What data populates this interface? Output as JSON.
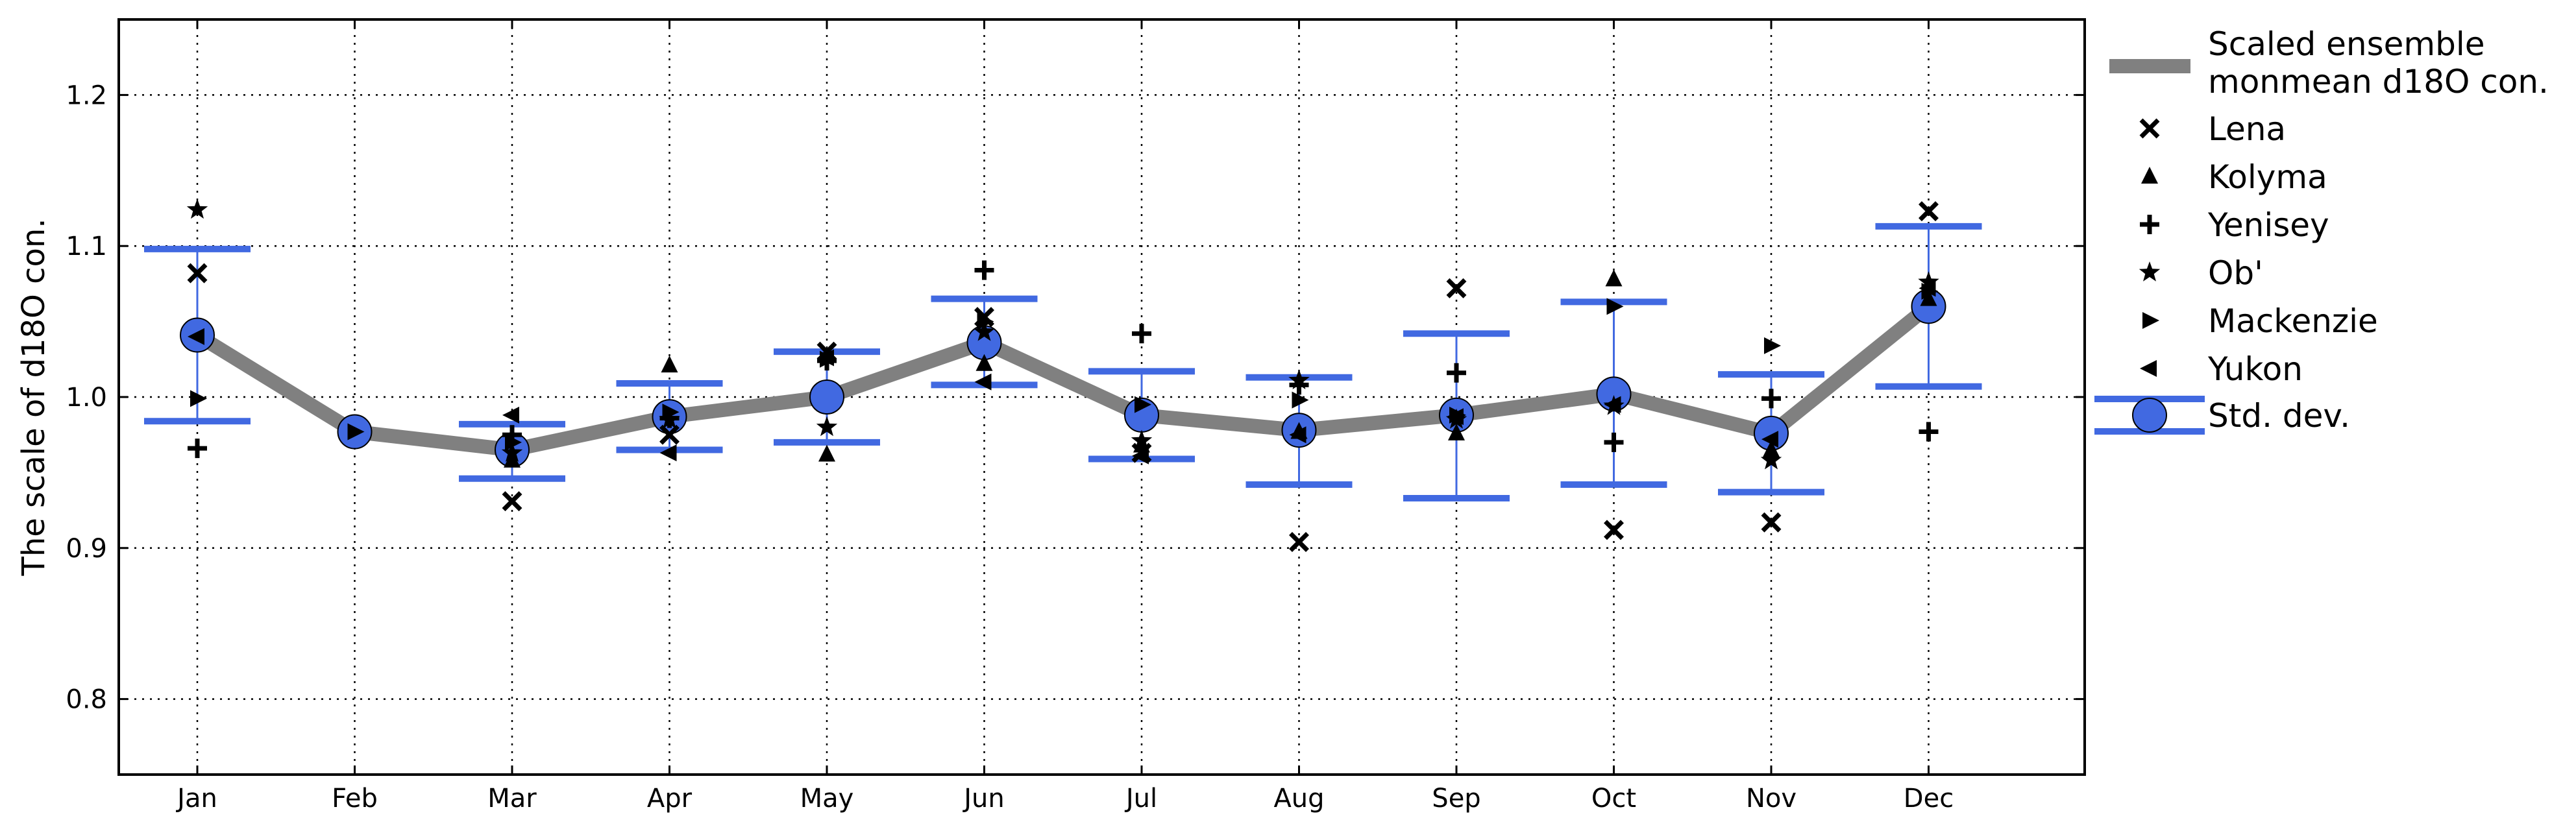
{
  "chart_data": {
    "type": "line",
    "title": "",
    "xlabel": "",
    "ylabel": "The scale of d18O con.",
    "categories": [
      "Jan",
      "Feb",
      "Mar",
      "Apr",
      "May",
      "Jun",
      "Jul",
      "Aug",
      "Sep",
      "Oct",
      "Nov",
      "Dec"
    ],
    "ylim": [
      0.75,
      1.25
    ],
    "yticks": [
      "0.8",
      "0.9",
      "1.0",
      "1.1",
      "1.2"
    ],
    "grid": true,
    "legend_position": "outside-right",
    "series": [
      {
        "name": "Scaled ensemble monmean d18O con.",
        "style": "line",
        "color": "#808080",
        "values": [
          1.041,
          0.977,
          0.965,
          0.987,
          1.0,
          1.036,
          0.988,
          0.978,
          0.988,
          1.002,
          0.976,
          1.06
        ]
      },
      {
        "name": "Lena",
        "marker": "x",
        "values": [
          1.082,
          null,
          0.931,
          0.975,
          1.03,
          1.053,
          0.963,
          0.904,
          1.072,
          0.912,
          0.917,
          1.123
        ]
      },
      {
        "name": "Kolyma",
        "marker": "triangle-up",
        "values": [
          null,
          null,
          0.958,
          1.021,
          0.962,
          1.022,
          0.968,
          0.977,
          0.976,
          1.078,
          0.965,
          1.065
        ]
      },
      {
        "name": "Yenisey",
        "marker": "plus",
        "values": [
          0.966,
          null,
          0.975,
          0.986,
          1.024,
          1.084,
          1.042,
          1.008,
          1.016,
          0.97,
          0.999,
          0.977
        ]
      },
      {
        "name": "Ob'",
        "marker": "star",
        "values": [
          1.124,
          null,
          0.963,
          0.985,
          0.98,
          1.043,
          0.971,
          1.011,
          0.985,
          0.994,
          0.958,
          1.076
        ]
      },
      {
        "name": "Mackenzie",
        "marker": "triangle-right",
        "values": [
          0.999,
          0.977,
          0.97,
          0.99,
          1.025,
          1.05,
          0.995,
          0.998,
          0.988,
          1.06,
          1.034,
          1.07
        ]
      },
      {
        "name": "Yukon",
        "marker": "triangle-left",
        "values": [
          1.04,
          null,
          0.988,
          0.963,
          1.026,
          1.01,
          0.961,
          0.975,
          0.987,
          0.995,
          0.972,
          1.072
        ]
      },
      {
        "name": "Std. dev.",
        "style": "errorbar",
        "color": "#4169e1",
        "means": [
          1.041,
          0.977,
          0.965,
          0.987,
          1.0,
          1.036,
          0.988,
          0.978,
          0.988,
          1.002,
          0.976,
          1.06
        ],
        "lower": [
          0.984,
          0.977,
          0.946,
          0.965,
          0.97,
          1.008,
          0.959,
          0.942,
          0.933,
          0.942,
          0.937,
          1.007
        ],
        "upper": [
          1.098,
          0.977,
          0.982,
          1.009,
          1.03,
          1.065,
          1.017,
          1.013,
          1.042,
          1.063,
          1.015,
          1.113
        ]
      }
    ]
  }
}
